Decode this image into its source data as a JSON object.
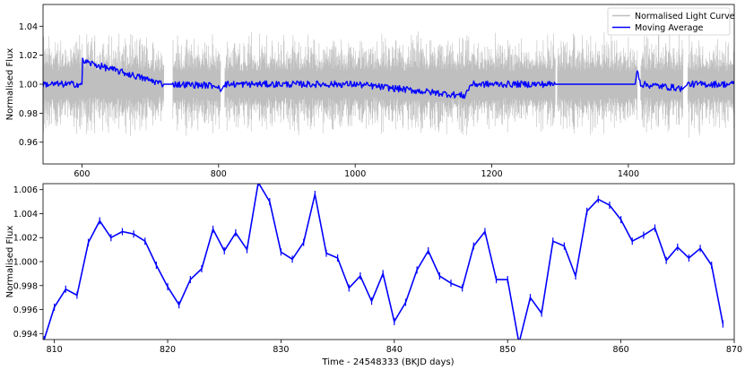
{
  "chart_data": [
    {
      "type": "line",
      "ylabel": "Normalised Flux",
      "xlim": [
        543,
        1555
      ],
      "ylim": [
        0.945,
        1.055
      ],
      "xticks": [
        600,
        800,
        1000,
        1200,
        1400
      ],
      "yticks": [
        0.96,
        0.98,
        1.0,
        1.02,
        1.04
      ],
      "ytick_labels": [
        "0.96",
        "0.98",
        "1.00",
        "1.02",
        "1.04"
      ],
      "legend_position": "top-right",
      "series": [
        {
          "name": "Normalised Light Curve",
          "color": "#bfbfbf",
          "y_center": 1.0,
          "y_half_range_approx": 0.02,
          "segments": [
            [
              543,
              720
            ],
            [
              733,
              803
            ],
            [
              809,
              1293
            ],
            [
              1296,
              1413
            ],
            [
              1418,
              1480
            ],
            [
              1487,
              1555
            ]
          ]
        },
        {
          "name": "Moving Average",
          "color": "#0000ff",
          "x": [
            543,
            600,
            601,
            720,
            733,
            800,
            803,
            809,
            1000,
            1160,
            1170,
            1293,
            1410,
            1413,
            1418,
            1480,
            1487,
            1555
          ],
          "y": [
            1.0,
            1.0,
            1.016,
            1.0,
            1.0,
            0.999,
            0.995,
            1.0,
            1.0,
            0.992,
            1.0,
            1.0,
            1.0,
            1.011,
            1.0,
            0.997,
            1.0,
            1.0
          ]
        }
      ]
    },
    {
      "type": "line",
      "xlabel": "Time - 24548333 (BKJD days)",
      "ylabel": "Normalised Flux",
      "xlim": [
        809,
        870
      ],
      "ylim": [
        0.9935,
        1.0065
      ],
      "xticks": [
        810,
        820,
        830,
        840,
        850,
        860,
        870
      ],
      "yticks": [
        0.994,
        0.996,
        0.998,
        1.0,
        1.002,
        1.004,
        1.006
      ],
      "ytick_labels": [
        "0.994",
        "0.996",
        "0.998",
        "1.000",
        "1.002",
        "1.004",
        "1.006"
      ],
      "series": [
        {
          "name": "Moving Average",
          "color": "#0000ff",
          "error_bar": 0.0003,
          "x": [
            809.1,
            810,
            811,
            812,
            813,
            814,
            815,
            816,
            817,
            818,
            819,
            820,
            821,
            822,
            823,
            824,
            825,
            826,
            827,
            828,
            829,
            830,
            831,
            832,
            833,
            834,
            835,
            836,
            837,
            838,
            839,
            840,
            841,
            842,
            843,
            844,
            845,
            846,
            847,
            848,
            849,
            850,
            851,
            852,
            853,
            854,
            855,
            856,
            857,
            858,
            859,
            860,
            861,
            862,
            863,
            864,
            865,
            866,
            867,
            868,
            869
          ],
          "y": [
            0.9935,
            0.9962,
            0.9977,
            0.9972,
            1.0016,
            1.0034,
            1.002,
            1.0025,
            1.0023,
            1.0017,
            0.9997,
            0.9979,
            0.9964,
            0.9985,
            0.9994,
            1.0027,
            1.0009,
            1.0024,
            1.001,
            1.0066,
            1.005,
            1.0008,
            1.0002,
            1.0016,
            1.0056,
            1.0007,
            1.0003,
            0.9978,
            0.9988,
            0.9967,
            0.999,
            0.995,
            0.9966,
            0.9993,
            1.0009,
            0.9988,
            0.9982,
            0.9978,
            1.0013,
            1.0025,
            0.9985,
            0.9985,
            0.9932,
            0.997,
            0.9957,
            1.0017,
            1.0013,
            0.9988,
            1.0042,
            1.0052,
            1.0047,
            1.0035,
            1.0017,
            1.0022,
            1.0028,
            1.0001,
            1.0012,
            1.0003,
            1.0011,
            0.9997,
            0.9948
          ]
        }
      ]
    }
  ]
}
